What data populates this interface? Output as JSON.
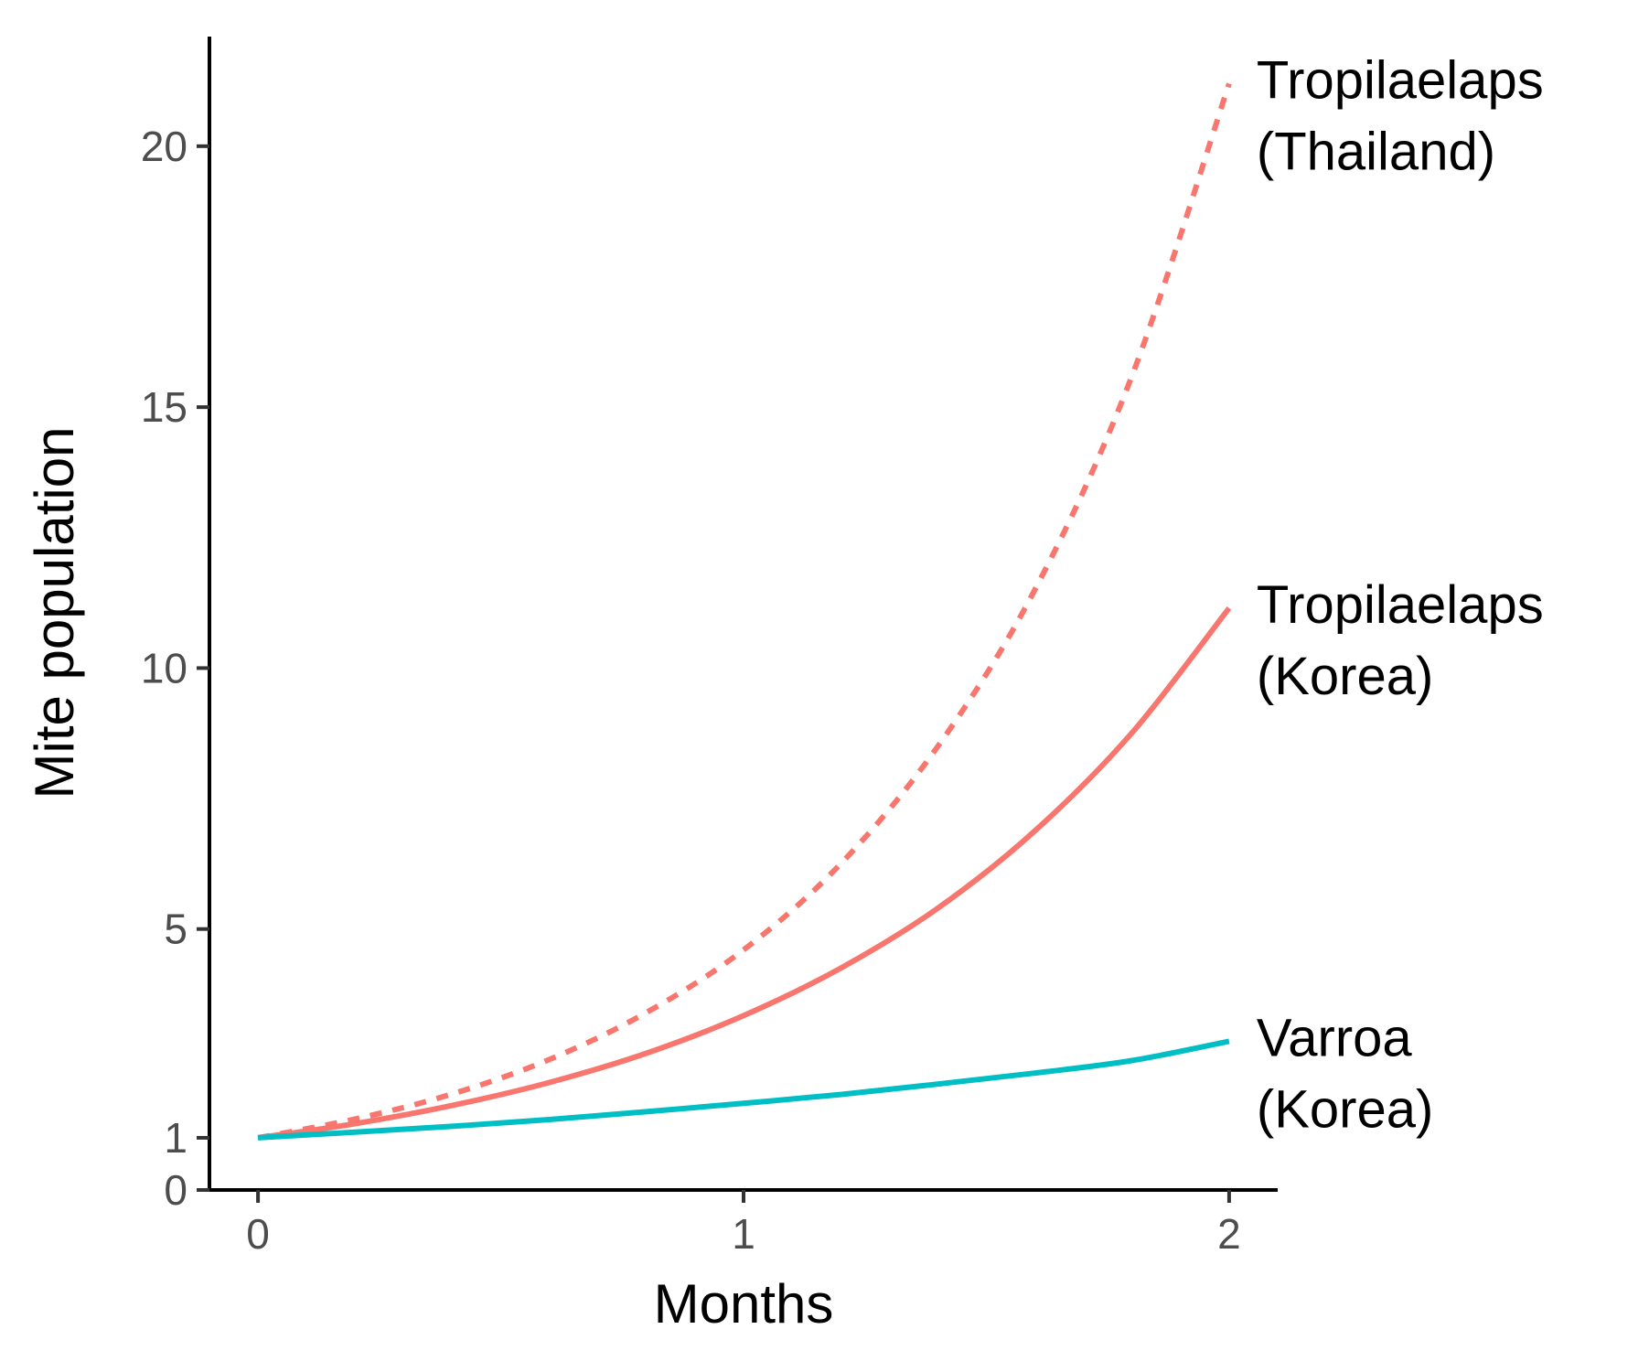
{
  "chart_data": {
    "type": "line",
    "title": "",
    "xlabel": "Months",
    "ylabel": "Mite population",
    "xlim": [
      -0.1,
      2.1
    ],
    "ylim": [
      0,
      22.1
    ],
    "xticks": [
      0,
      1,
      2
    ],
    "yticks": [
      0,
      1,
      5,
      10,
      15,
      20
    ],
    "grid": false,
    "legend": "none (direct labels at line ends)",
    "series": [
      {
        "genus": "Tropilaelaps",
        "region": "(Thailand)",
        "color": "#F8766D",
        "dash": "dotted",
        "x": [
          0,
          0.2,
          0.4,
          0.6,
          0.8,
          1.0,
          1.2,
          1.4,
          1.6,
          1.8,
          2.0
        ],
        "y": [
          1.0,
          1.36,
          1.84,
          2.5,
          3.4,
          4.6,
          6.25,
          8.5,
          11.5,
          15.6,
          21.2
        ]
      },
      {
        "genus": "Tropilaelaps",
        "region": "(Korea)",
        "color": "#F8766D",
        "dash": "solid",
        "x": [
          0,
          0.2,
          0.4,
          0.6,
          0.8,
          1.0,
          1.2,
          1.4,
          1.6,
          1.8,
          2.0
        ],
        "y": [
          1.0,
          1.27,
          1.62,
          2.06,
          2.62,
          3.34,
          4.25,
          5.4,
          6.88,
          8.76,
          11.15
        ]
      },
      {
        "genus": "Varroa",
        "region": "(Korea)",
        "color": "#00BFC4",
        "dash": "solid",
        "x": [
          0,
          0.2,
          0.4,
          0.6,
          0.8,
          1.0,
          1.2,
          1.4,
          1.6,
          1.8,
          2.0
        ],
        "y": [
          1.0,
          1.11,
          1.22,
          1.35,
          1.5,
          1.66,
          1.83,
          2.03,
          2.24,
          2.48,
          2.85
        ]
      }
    ]
  }
}
